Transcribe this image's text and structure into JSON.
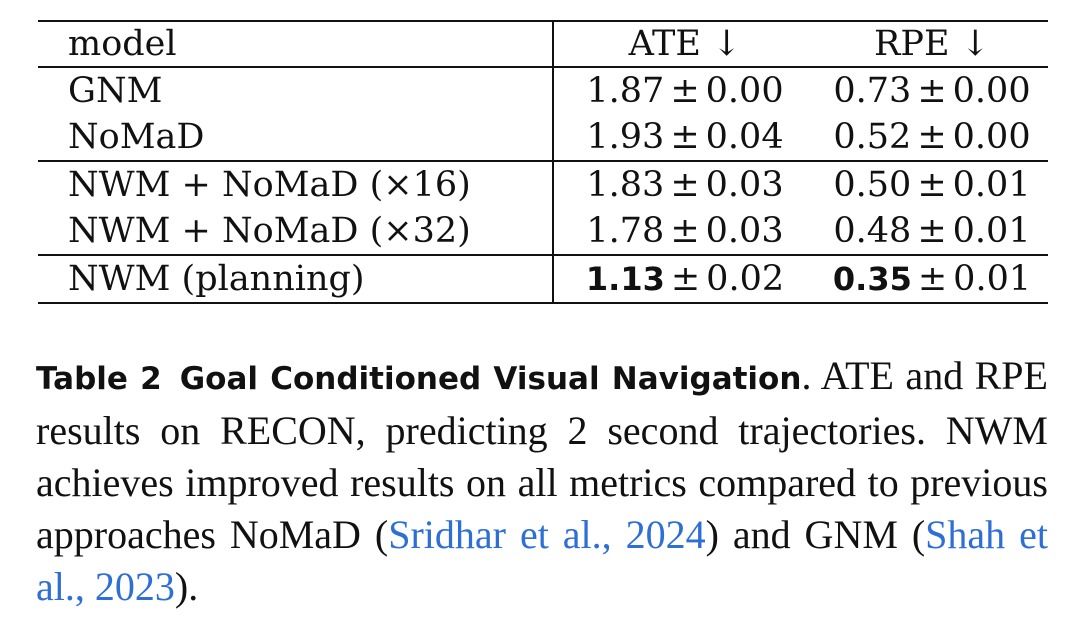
{
  "table": {
    "headers": {
      "model": "model",
      "ate": "ATE ↓",
      "rpe": "RPE ↓"
    },
    "rows": [
      {
        "model": "GNM",
        "ate_mean": "1.87",
        "ate_std": "0.00",
        "rpe_mean": "0.73",
        "rpe_std": "0.00"
      },
      {
        "model": "NoMaD",
        "ate_mean": "1.93",
        "ate_std": "0.04",
        "rpe_mean": "0.52",
        "rpe_std": "0.00"
      },
      {
        "model": "NWM + NoMaD (×16)",
        "ate_mean": "1.83",
        "ate_std": "0.03",
        "rpe_mean": "0.50",
        "rpe_std": "0.01"
      },
      {
        "model": "NWM + NoMaD (×32)",
        "ate_mean": "1.78",
        "ate_std": "0.03",
        "rpe_mean": "0.48",
        "rpe_std": "0.01"
      },
      {
        "model": "NWM (planning)",
        "ate_mean": "1.13",
        "ate_std": "0.02",
        "rpe_mean": "0.35",
        "rpe_std": "0.01"
      }
    ],
    "pm_symbol": "±"
  },
  "caption": {
    "label": "Table 2",
    "title": "Goal Conditioned Visual Navigation",
    "text_1": ". ATE and RPE results on RECON, predicting 2 second trajectories. NWM achieves improved results on all metrics compared to previous approaches NoMaD (",
    "cite_1": "Sridhar et al., 2024",
    "text_2": ") and GNM (",
    "cite_2": "Shah et al., 2023",
    "text_3": ")."
  }
}
